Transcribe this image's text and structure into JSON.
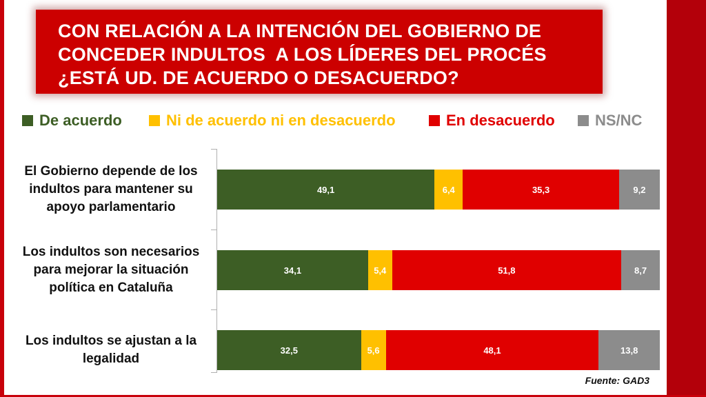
{
  "title_lines": [
    "CON RELACIÓN A LA INTENCIÓN DEL GOBIERNO DE",
    "CONCEDER INDULTOS  A LOS LÍDERES DEL PROCÉS",
    "¿ESTÁ UD. DE ACUERDO O DESACUERDO?"
  ],
  "source": "Fuente: GAD3",
  "colors": {
    "de_acuerdo": "#3d5e25",
    "ni": "#ffc000",
    "desacuerdo": "#e00000",
    "nsnc": "#8c8c8c",
    "title_bg": "#cc0000"
  },
  "chart_data": {
    "type": "bar",
    "orientation": "horizontal",
    "stacked": true,
    "title": "CON RELACIÓN A LA INTENCIÓN DEL GOBIERNO DE CONCEDER INDULTOS  A LOS LÍDERES DEL PROCÉS ¿ESTÁ UD. DE ACUERDO O DESACUERDO?",
    "legend_position": "top",
    "categories": [
      "El Gobierno depende de los indultos para mantener su apoyo parlamentario",
      "Los indultos son necesarios para mejorar la situación política en Cataluña",
      "Los indultos se ajustan a la legalidad"
    ],
    "category_lines": [
      [
        "El Gobierno depende de los",
        "indultos para mantener su",
        "apoyo parlamentario"
      ],
      [
        "Los indultos son necesarios",
        "para mejorar la situación",
        "política en Cataluña"
      ],
      [
        "Los indultos se ajustan a la",
        "legalidad"
      ]
    ],
    "series": [
      {
        "name": "De acuerdo",
        "values": [
          49.1,
          34.1,
          32.5
        ],
        "labels": [
          "49,1",
          "34,1",
          "32,5"
        ],
        "color": "#3d5e25"
      },
      {
        "name": "Ni de acuerdo ni en desacuerdo",
        "values": [
          6.4,
          5.4,
          5.6
        ],
        "labels": [
          "6,4",
          "5,4",
          "5,6"
        ],
        "color": "#ffc000"
      },
      {
        "name": "En desacuerdo",
        "values": [
          35.3,
          51.8,
          48.1
        ],
        "labels": [
          "35,3",
          "51,8",
          "48,1"
        ],
        "color": "#e00000"
      },
      {
        "name": "NS/NC",
        "values": [
          9.2,
          8.7,
          13.8
        ],
        "labels": [
          "9,2",
          "8,7",
          "13,8"
        ],
        "color": "#8c8c8c"
      }
    ],
    "xlim": [
      0,
      100
    ],
    "grid": false
  }
}
